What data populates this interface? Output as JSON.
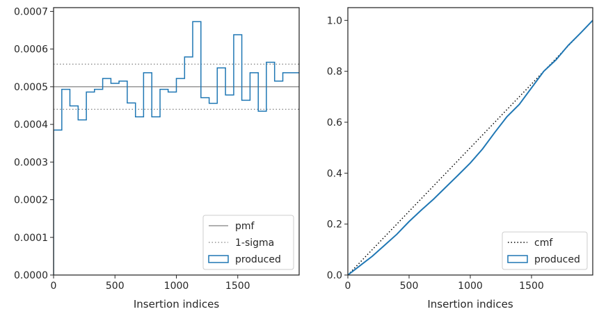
{
  "chart_data": [
    {
      "type": "line",
      "subtype": "step-histogram",
      "xlabel": "Insertion indices",
      "ylabel": "",
      "xlim": [
        0,
        2000
      ],
      "ylim": [
        0,
        0.00071
      ],
      "xticks": [
        "0",
        "500",
        "1000",
        "1500"
      ],
      "xtick_values": [
        0,
        500,
        1000,
        1500
      ],
      "yticks": [
        "0.0000",
        "0.0001",
        "0.0002",
        "0.0003",
        "0.0004",
        "0.0005",
        "0.0006",
        "0.0007"
      ],
      "ytick_values": [
        0,
        0.0001,
        0.0002,
        0.0003,
        0.0004,
        0.0005,
        0.0006,
        0.0007
      ],
      "grid": false,
      "legend_position": "lower-right",
      "reference_lines": [
        {
          "name": "pmf",
          "y": 0.0005,
          "style": "solid",
          "color": "#808080"
        },
        {
          "name": "1-sigma",
          "y": 0.00056,
          "style": "dotted",
          "color": "#808080"
        },
        {
          "name": "1-sigma-lower",
          "y": 0.00044,
          "style": "dotted",
          "color": "#808080"
        }
      ],
      "legend": [
        "pmf",
        "1-sigma",
        "produced"
      ],
      "series": [
        {
          "name": "produced",
          "color": "#1f77b4",
          "bin_edges": [
            0,
            67,
            133,
            200,
            267,
            333,
            400,
            467,
            533,
            600,
            667,
            733,
            800,
            867,
            933,
            1000,
            1067,
            1133,
            1200,
            1267,
            1333,
            1400,
            1467,
            1533,
            1600,
            1667,
            1733,
            1800,
            1867,
            1933,
            2000
          ],
          "values": [
            0.000385,
            0.000493,
            0.000449,
            0.000412,
            0.000486,
            0.000493,
            0.000522,
            0.000509,
            0.000515,
            0.000457,
            0.00042,
            0.000537,
            0.00042,
            0.000493,
            0.000486,
            0.000522,
            0.000579,
            0.000673,
            0.000471,
            0.000456,
            0.00055,
            0.000478,
            0.000638,
            0.000464,
            0.000537,
            0.000435,
            0.000565,
            0.000515,
            0.000537,
            0.000537
          ]
        }
      ]
    },
    {
      "type": "line",
      "subtype": "cumulative",
      "xlabel": "Insertion indices",
      "ylabel": "",
      "xlim": [
        0,
        2000
      ],
      "ylim": [
        0,
        1.05
      ],
      "xticks": [
        "0",
        "500",
        "1000",
        "1500"
      ],
      "xtick_values": [
        0,
        500,
        1000,
        1500
      ],
      "yticks": [
        "0.0",
        "0.2",
        "0.4",
        "0.6",
        "0.8",
        "1.0"
      ],
      "ytick_values": [
        0,
        0.2,
        0.4,
        0.6,
        0.8,
        1.0
      ],
      "grid": false,
      "legend_position": "lower-right",
      "legend": [
        "cmf",
        "produced"
      ],
      "series": [
        {
          "name": "cmf",
          "style": "dotted",
          "color": "#000000",
          "x": [
            0,
            2000
          ],
          "y": [
            0,
            1.0
          ]
        },
        {
          "name": "produced",
          "style": "solid",
          "color": "#1f77b4",
          "x": [
            0,
            100,
            200,
            300,
            400,
            500,
            600,
            700,
            800,
            900,
            1000,
            1100,
            1200,
            1300,
            1400,
            1500,
            1600,
            1700,
            1800,
            1900,
            2000
          ],
          "y": [
            0,
            0.037,
            0.074,
            0.117,
            0.16,
            0.21,
            0.255,
            0.298,
            0.345,
            0.392,
            0.44,
            0.495,
            0.56,
            0.622,
            0.67,
            0.735,
            0.8,
            0.845,
            0.902,
            0.95,
            1.0
          ]
        }
      ]
    }
  ]
}
